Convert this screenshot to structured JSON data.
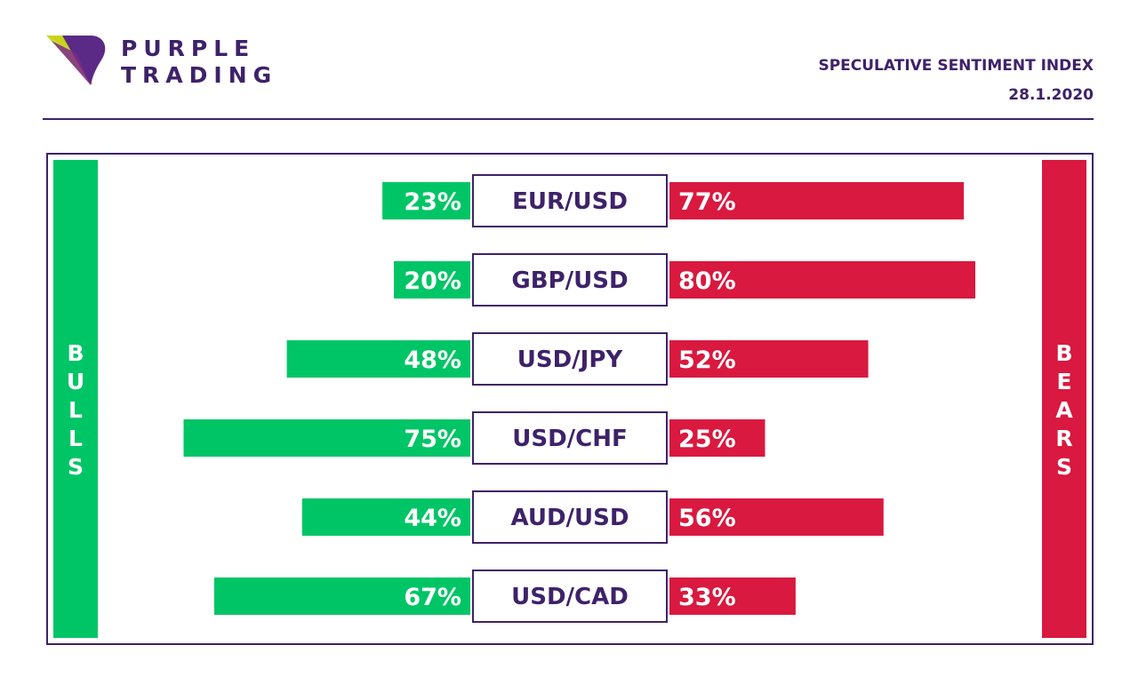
{
  "brand": {
    "line1": "PURPLE",
    "line2": "TRADING"
  },
  "header": {
    "title": "SPECULATIVE SENTIMENT INDEX",
    "date": "28.1.2020"
  },
  "side_labels": {
    "left": "BULLS",
    "right": "BEARS"
  },
  "colors": {
    "purple": "#3e2269",
    "bull": "#00c566",
    "bear": "#d9193f",
    "logo_yellow": "#d4e600"
  },
  "chart_data": {
    "type": "bar",
    "title": "SPECULATIVE SENTIMENT INDEX",
    "categories": [
      "EUR/USD",
      "GBP/USD",
      "USD/JPY",
      "USD/CHF",
      "AUD/USD",
      "USD/CAD"
    ],
    "series": [
      {
        "name": "BULLS",
        "values": [
          23,
          20,
          48,
          75,
          44,
          67
        ]
      },
      {
        "name": "BEARS",
        "values": [
          77,
          80,
          52,
          25,
          56,
          33
        ]
      }
    ],
    "labels_bull": [
      "23%",
      "20%",
      "48%",
      "75%",
      "44%",
      "67%"
    ],
    "labels_bear": [
      "77%",
      "80%",
      "52%",
      "25%",
      "56%",
      "33%"
    ],
    "ylim": [
      0,
      100
    ],
    "grid": false
  }
}
